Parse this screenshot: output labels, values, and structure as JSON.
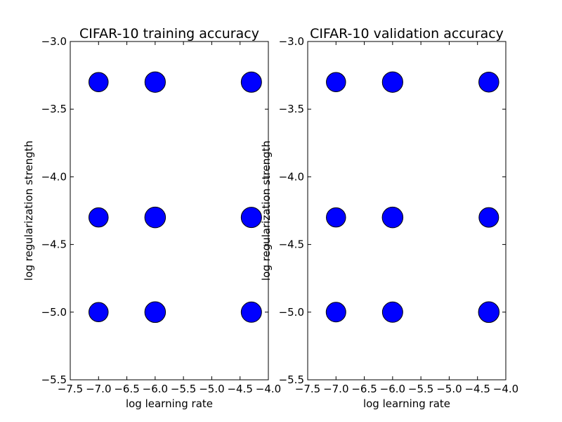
{
  "chart_data": [
    {
      "type": "scatter",
      "title": "CIFAR-10 training accuracy",
      "xlabel": "log learning rate",
      "ylabel": "log regularization strength",
      "xlim": [
        -7.5,
        -4.0
      ],
      "ylim": [
        -5.5,
        -3.0
      ],
      "xticks": [
        -7.5,
        -7.0,
        -6.5,
        -6.0,
        -5.5,
        -5.0,
        -4.5,
        -4.0
      ],
      "xtick_labels": [
        "−7.5",
        "−7.0",
        "−6.5",
        "−6.0",
        "−5.5",
        "−5.0",
        "−4.5",
        "−4.0"
      ],
      "yticks": [
        -3.0,
        -3.5,
        -4.0,
        -4.5,
        -5.0,
        -5.5
      ],
      "ytick_labels": [
        "−3.0",
        "−3.5",
        "−4.0",
        "−4.5",
        "−5.0",
        "−5.5"
      ],
      "grid": false,
      "marker_color": "#0000ff",
      "points": [
        {
          "x": -7.0,
          "y": -3.3,
          "size": 0.75
        },
        {
          "x": -6.0,
          "y": -3.3,
          "size": 0.92
        },
        {
          "x": -4.3,
          "y": -3.3,
          "size": 0.9
        },
        {
          "x": -7.0,
          "y": -4.3,
          "size": 0.75
        },
        {
          "x": -6.0,
          "y": -4.3,
          "size": 0.95
        },
        {
          "x": -4.3,
          "y": -4.3,
          "size": 0.9
        },
        {
          "x": -7.0,
          "y": -5.0,
          "size": 0.75
        },
        {
          "x": -6.0,
          "y": -5.0,
          "size": 0.95
        },
        {
          "x": -4.3,
          "y": -5.0,
          "size": 0.9
        }
      ]
    },
    {
      "type": "scatter",
      "title": "CIFAR-10 validation accuracy",
      "xlabel": "log learning rate",
      "ylabel": "log regularization strength",
      "xlim": [
        -7.5,
        -4.0
      ],
      "ylim": [
        -5.5,
        -3.0
      ],
      "xticks": [
        -7.5,
        -7.0,
        -6.5,
        -6.0,
        -5.5,
        -5.0,
        -4.5,
        -4.0
      ],
      "xtick_labels": [
        "−7.5",
        "−7.0",
        "−6.5",
        "−6.0",
        "−5.5",
        "−5.0",
        "−4.5",
        "−4.0"
      ],
      "yticks": [
        -3.0,
        -3.5,
        -4.0,
        -4.5,
        -5.0,
        -5.5
      ],
      "ytick_labels": [
        "−3.0",
        "−3.5",
        "−4.0",
        "−4.5",
        "−5.0",
        "−5.5"
      ],
      "grid": false,
      "marker_color": "#0000ff",
      "points": [
        {
          "x": -7.0,
          "y": -3.3,
          "size": 0.75
        },
        {
          "x": -6.0,
          "y": -3.3,
          "size": 0.92
        },
        {
          "x": -4.3,
          "y": -3.3,
          "size": 0.85
        },
        {
          "x": -7.0,
          "y": -4.3,
          "size": 0.75
        },
        {
          "x": -6.0,
          "y": -4.3,
          "size": 0.95
        },
        {
          "x": -4.3,
          "y": -4.3,
          "size": 0.8
        },
        {
          "x": -7.0,
          "y": -5.0,
          "size": 0.8
        },
        {
          "x": -6.0,
          "y": -5.0,
          "size": 0.9
        },
        {
          "x": -4.3,
          "y": -5.0,
          "size": 0.95
        }
      ]
    }
  ]
}
